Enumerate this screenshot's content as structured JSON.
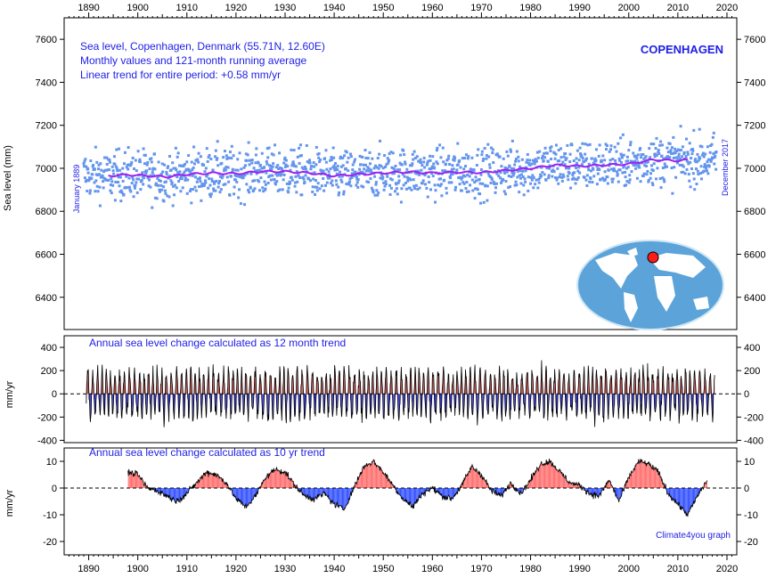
{
  "chart_data": [
    {
      "type": "scatter",
      "panel": "top",
      "title_lines": [
        "Sea level, Copenhagen, Denmark (55.71N, 12.60E)",
        "Monthly values and 121-month running average",
        "Linear trend for entire period: +0.58 mm/yr"
      ],
      "station_label": "COPENHAGEN",
      "ylabel": "Sea level (mm)",
      "start_label": "January 1889",
      "end_label": "December 2017",
      "ylim": [
        6250,
        7700
      ],
      "yticks": [
        6400,
        6600,
        6800,
        7000,
        7200,
        7400,
        7600
      ],
      "xlim": [
        1885,
        2022
      ],
      "xticks": [
        1890,
        1900,
        1910,
        1920,
        1930,
        1940,
        1950,
        1960,
        1970,
        1980,
        1990,
        2000,
        2010,
        2020
      ],
      "series": [
        {
          "role": "monthly values",
          "color": "#6495ed",
          "x_range": [
            1889,
            2017.9
          ],
          "approx_mean": 6980,
          "approx_spread": 95
        },
        {
          "role": "121-month running average",
          "color": "#a020f0",
          "x": [
            1894,
            1898,
            1902,
            1906,
            1910,
            1915,
            1920,
            1925,
            1930,
            1935,
            1940,
            1945,
            1950,
            1955,
            1960,
            1965,
            1970,
            1975,
            1980,
            1985,
            1990,
            1995,
            2000,
            2005,
            2010,
            2012
          ],
          "y": [
            6965,
            6970,
            6965,
            6960,
            6972,
            6978,
            6975,
            6985,
            6985,
            6978,
            6965,
            6972,
            6978,
            6983,
            6978,
            6982,
            6980,
            6990,
            7000,
            7015,
            7010,
            7015,
            7020,
            7040,
            7035,
            7040
          ]
        }
      ],
      "inset": "world map with red dot marking Copenhagen"
    },
    {
      "type": "area",
      "panel": "middle",
      "title": "Annual sea level change calculated as 12 month trend",
      "ylabel": "mm/yr",
      "ylim": [
        -420,
        500
      ],
      "yticks": [
        -400,
        -200,
        0,
        200,
        400
      ],
      "xlim": [
        1885,
        2022
      ],
      "positive_color": "#b22222",
      "negative_color": "#0000cd",
      "x_range": [
        1889.5,
        2017.5
      ],
      "approx_amplitude": 220
    },
    {
      "type": "area",
      "panel": "bottom",
      "title": "Annual sea level change calculated as 10 yr trend",
      "ylabel": "mm/yr",
      "ylim": [
        -25,
        15
      ],
      "yticks": [
        -20,
        -10,
        0,
        10
      ],
      "xlim": [
        1885,
        2022
      ],
      "positive_color": "#ff6060",
      "negative_color": "#2040ff",
      "x": [
        1898,
        1900,
        1902,
        1904,
        1906,
        1908,
        1910,
        1912,
        1914,
        1916,
        1918,
        1920,
        1922,
        1924,
        1926,
        1928,
        1930,
        1932,
        1934,
        1936,
        1938,
        1940,
        1942,
        1944,
        1946,
        1948,
        1950,
        1952,
        1954,
        1956,
        1958,
        1960,
        1962,
        1964,
        1966,
        1968,
        1970,
        1972,
        1974,
        1976,
        1978,
        1980,
        1982,
        1984,
        1986,
        1988,
        1990,
        1992,
        1994,
        1996,
        1998,
        2000,
        2002,
        2004,
        2006,
        2008,
        2010,
        2012,
        2014,
        2016
      ],
      "y": [
        6,
        5,
        0,
        -1,
        -3,
        -5,
        -2,
        2,
        6,
        5,
        2,
        -4,
        -7,
        -3,
        4,
        7,
        6,
        1,
        -3,
        -4,
        -2,
        -6,
        -8,
        0,
        8,
        10,
        6,
        1,
        -4,
        -7,
        -2,
        0,
        -3,
        -4,
        1,
        8,
        5,
        -1,
        -3,
        2,
        -2,
        3,
        9,
        10,
        6,
        2,
        1,
        -2,
        -3,
        3,
        -5,
        4,
        10,
        9,
        6,
        -2,
        -6,
        -10,
        -3,
        3
      ],
      "credit": "Climate4you graph"
    }
  ]
}
